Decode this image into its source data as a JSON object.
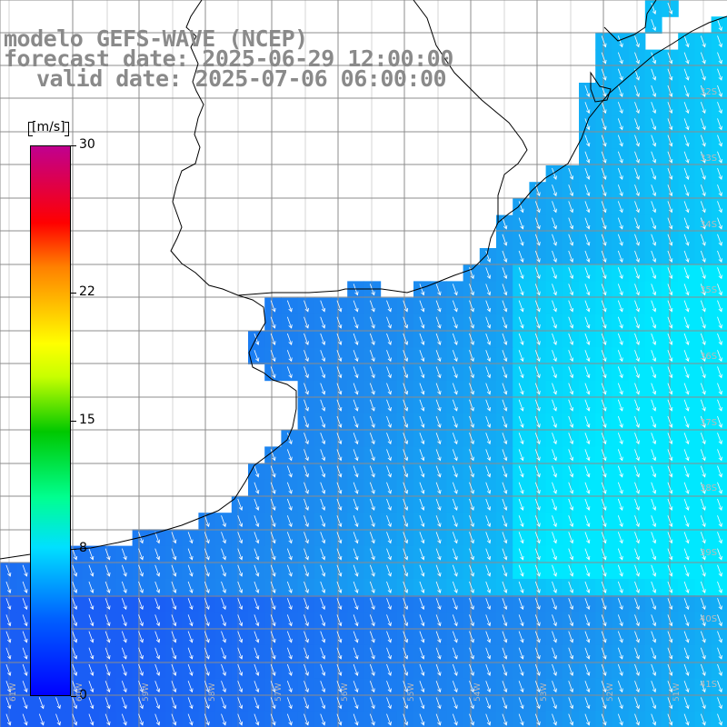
{
  "title": {
    "model": "modelo GEFS-WAVE (NCEP)",
    "forecast": "forecast date: 2025-06-29 12:00:00",
    "valid": "valid date: 2025-07-06 06:00:00"
  },
  "colorbar": {
    "unit": "[m/s]",
    "min": 0,
    "max": 30,
    "tick_values": [
      0,
      8,
      15,
      22,
      30
    ],
    "tick_labels": [
      "0",
      "8",
      "15",
      "22",
      "30"
    ],
    "colors": [
      "#0000ff",
      "#0080ff",
      "#00e8ff",
      "#00ff80",
      "#00cc00",
      "#c8ff00",
      "#ffff00",
      "#ff9900",
      "#ff2000",
      "#ff0000",
      "#e00060",
      "#c00080"
    ]
  },
  "map": {
    "latitude_labels": [
      "32S",
      "33S",
      "34S",
      "35S",
      "36S",
      "37S",
      "38S",
      "39S",
      "40S",
      "41S"
    ],
    "longitude_labels": [
      "61W",
      "60W",
      "59W",
      "58W",
      "57W",
      "56W",
      "55W",
      "54W",
      "53W",
      "52W",
      "51W"
    ],
    "wind_direction_deg": 160,
    "colors": {
      "land": "#ffffff",
      "coast": "#000000",
      "grid": "#8c8c8c",
      "low": "#1a5ef5",
      "mid": "#1c8cf0",
      "high": "#00e8ff",
      "arrow": "#ffffff"
    }
  }
}
